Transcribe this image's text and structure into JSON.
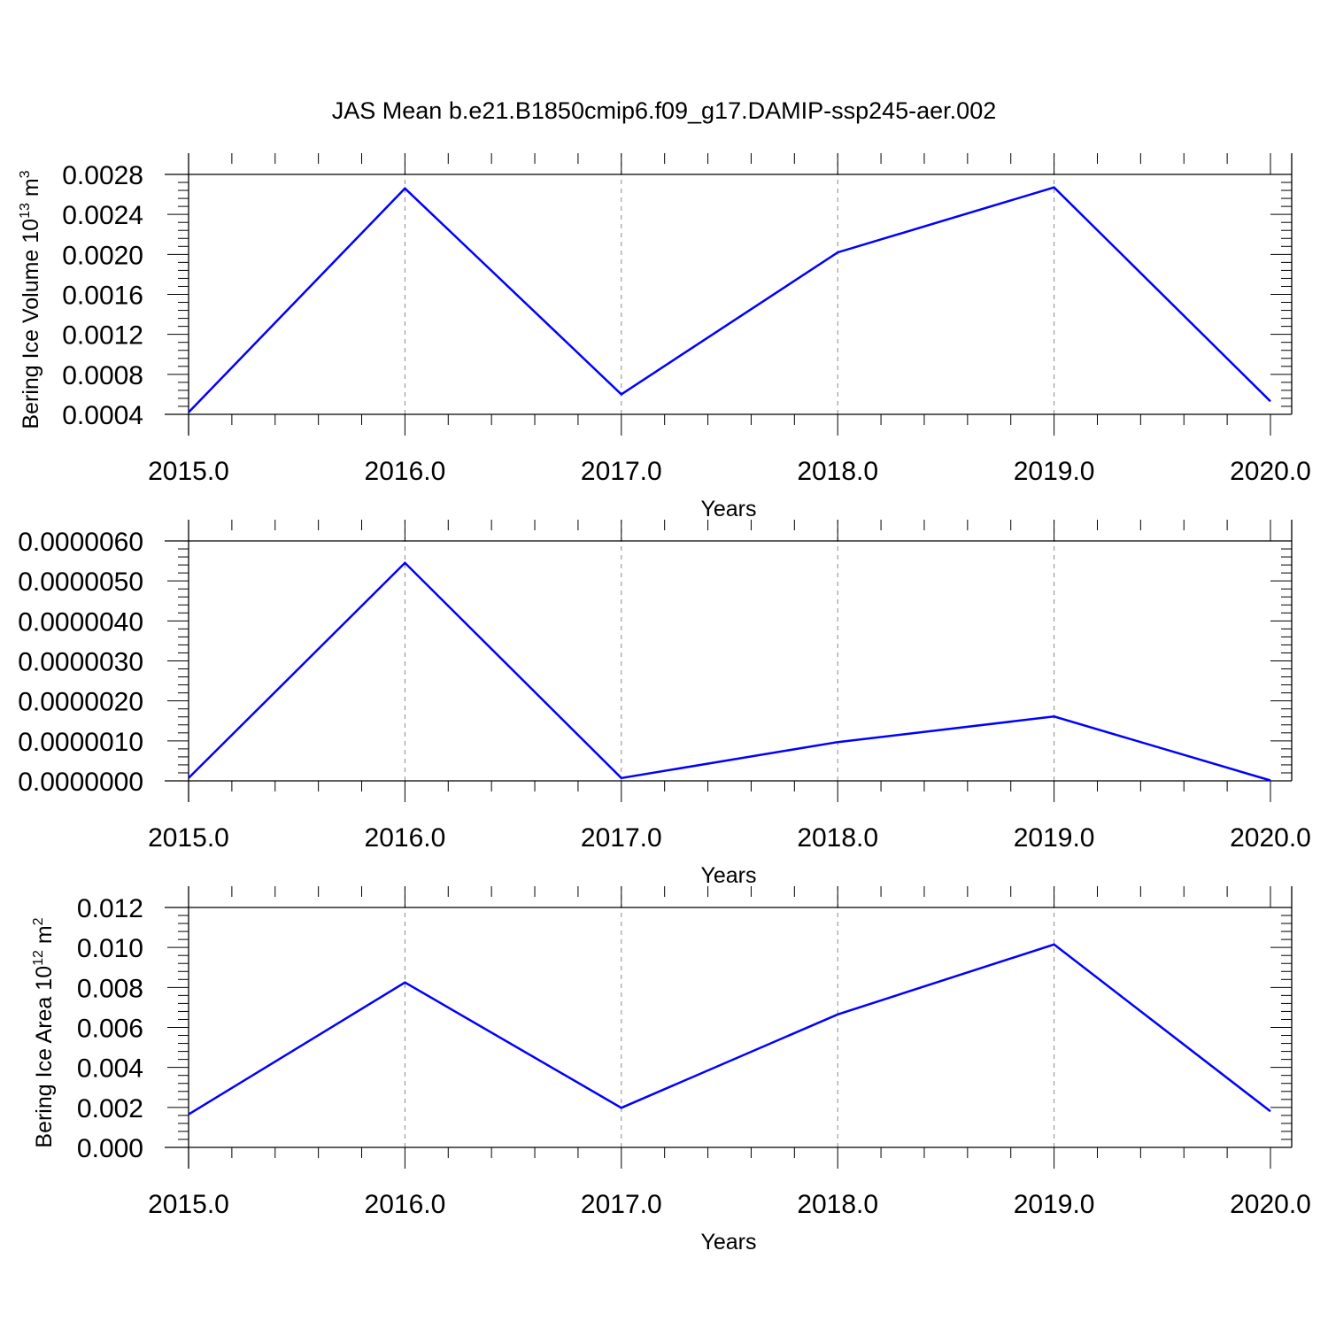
{
  "title": "JAS Mean b.e21.B1850cmip6.f09_g17.DAMIP-ssp245-aer.002",
  "line_color": "#0000ff",
  "chart_data": [
    {
      "type": "line",
      "xlabel": "Years",
      "ylabel": "Bering Ice Volume 10",
      "ylabel_exp": "13",
      "ylabel_unit": " m",
      "ylabel_unit_exp": "3",
      "xlim": [
        2015,
        2020
      ],
      "ylim": [
        0.0004,
        0.0028
      ],
      "xticks": [
        2015,
        2016,
        2017,
        2018,
        2019,
        2020
      ],
      "xtick_labels": [
        "2015.0",
        "2016.0",
        "2017.0",
        "2018.0",
        "2019.0",
        "2020.0"
      ],
      "yticks": [
        0.0004,
        0.0008,
        0.0012,
        0.0016,
        0.002,
        0.0024,
        0.0028
      ],
      "ytick_labels": [
        "0.0004",
        "0.0008",
        "0.0012",
        "0.0016",
        "0.0020",
        "0.0024",
        "0.0028"
      ],
      "grid": "vertical-dashed",
      "x": [
        2015,
        2016,
        2017,
        2018,
        2019,
        2020
      ],
      "y": [
        0.00042,
        0.00266,
        0.0006,
        0.00202,
        0.00267,
        0.00053
      ]
    },
    {
      "type": "line",
      "xlabel": "Years",
      "ylabel": "",
      "xlim": [
        2015,
        2020
      ],
      "ylim": [
        0,
        6e-06
      ],
      "xticks": [
        2015,
        2016,
        2017,
        2018,
        2019,
        2020
      ],
      "xtick_labels": [
        "2015.0",
        "2016.0",
        "2017.0",
        "2018.0",
        "2019.0",
        "2020.0"
      ],
      "yticks": [
        0,
        1e-06,
        2e-06,
        3e-06,
        4e-06,
        5e-06,
        6e-06
      ],
      "ytick_labels": [
        "0.0000000",
        "0.0000010",
        "0.0000020",
        "0.0000030",
        "0.0000040",
        "0.0000050",
        "0.0000060"
      ],
      "grid": "vertical-dashed",
      "x": [
        2015,
        2016,
        2017,
        2018,
        2019,
        2020
      ],
      "y": [
        7e-08,
        5.45e-06,
        7e-08,
        9.7e-07,
        1.61e-06,
        1e-08
      ]
    },
    {
      "type": "line",
      "xlabel": "Years",
      "ylabel": "Bering Ice Area 10",
      "ylabel_exp": "12",
      "ylabel_unit": " m",
      "ylabel_unit_exp": "2",
      "xlim": [
        2015,
        2020
      ],
      "ylim": [
        0,
        0.012
      ],
      "xticks": [
        2015,
        2016,
        2017,
        2018,
        2019,
        2020
      ],
      "xtick_labels": [
        "2015.0",
        "2016.0",
        "2017.0",
        "2018.0",
        "2019.0",
        "2020.0"
      ],
      "yticks": [
        0,
        0.002,
        0.004,
        0.006,
        0.008,
        0.01,
        0.012
      ],
      "ytick_labels": [
        "0.000",
        "0.002",
        "0.004",
        "0.006",
        "0.008",
        "0.010",
        "0.012"
      ],
      "grid": "vertical-dashed",
      "x": [
        2015,
        2016,
        2017,
        2018,
        2019,
        2020
      ],
      "y": [
        0.00165,
        0.00825,
        0.00198,
        0.00665,
        0.01015,
        0.0018
      ]
    }
  ]
}
